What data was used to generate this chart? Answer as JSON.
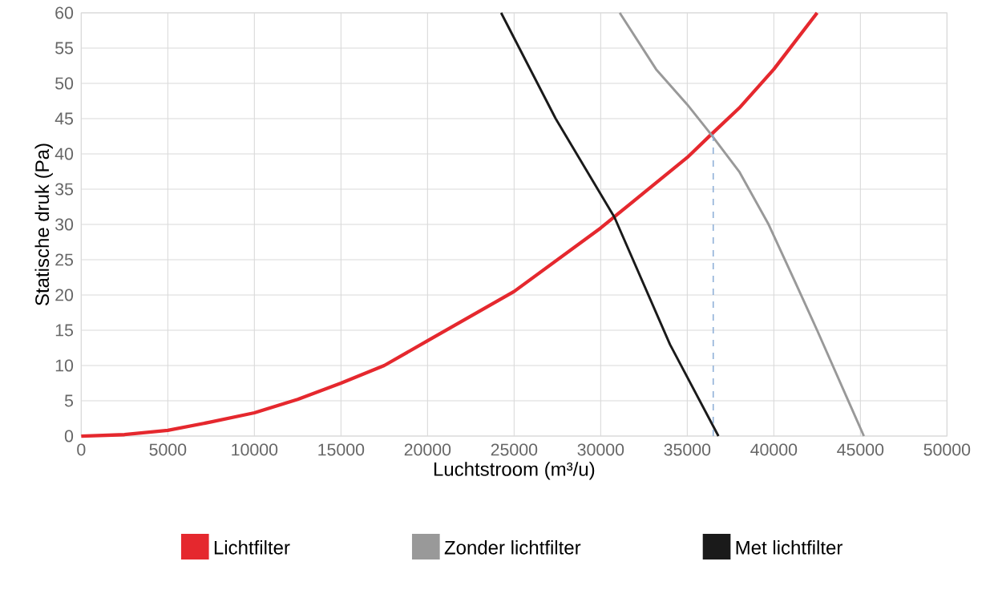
{
  "chart_data": {
    "type": "line",
    "xlabel": "Luchtstroom (m³/u)",
    "ylabel": "Statische druk (Pa)",
    "xlim": [
      0,
      50000
    ],
    "ylim": [
      0,
      60
    ],
    "xticks": [
      0,
      5000,
      10000,
      15000,
      20000,
      25000,
      30000,
      35000,
      40000,
      45000,
      50000
    ],
    "yticks": [
      0,
      5,
      10,
      15,
      20,
      25,
      30,
      35,
      40,
      45,
      50,
      55,
      60
    ],
    "grid": true,
    "legend": "bottom",
    "marker": "none",
    "series": [
      {
        "name": "Lichtfilter",
        "color": "#e5282e",
        "x": [
          0,
          2500,
          5000,
          7500,
          10000,
          12500,
          15000,
          17500,
          20000,
          22500,
          25000,
          27500,
          30000,
          32500,
          35000,
          36400,
          38000,
          40000,
          42500
        ],
        "values": [
          0,
          0.2,
          0.8,
          2,
          3.3,
          5.2,
          7.5,
          10,
          13.5,
          17,
          20.5,
          25,
          29.5,
          34.5,
          39.5,
          42.8,
          46.5,
          52,
          60
        ]
      },
      {
        "name": "Zonder lichtfilter",
        "color": "#999999",
        "x": [
          31100,
          33200,
          35000,
          36300,
          38000,
          39700,
          41200,
          42500,
          45200
        ],
        "values": [
          60,
          52,
          47,
          43,
          37.5,
          30,
          22,
          15,
          0
        ]
      },
      {
        "name": "Met lichtfilter",
        "color": "#1a1a1a",
        "x": [
          24250,
          27400,
          30800,
          34000,
          36800
        ],
        "values": [
          60,
          45,
          31,
          13,
          0
        ]
      },
      {
        "color": "#8fb0d8",
        "line_style": "dashed",
        "x": [
          36500,
          36500
        ],
        "values": [
          0,
          43
        ]
      }
    ]
  }
}
